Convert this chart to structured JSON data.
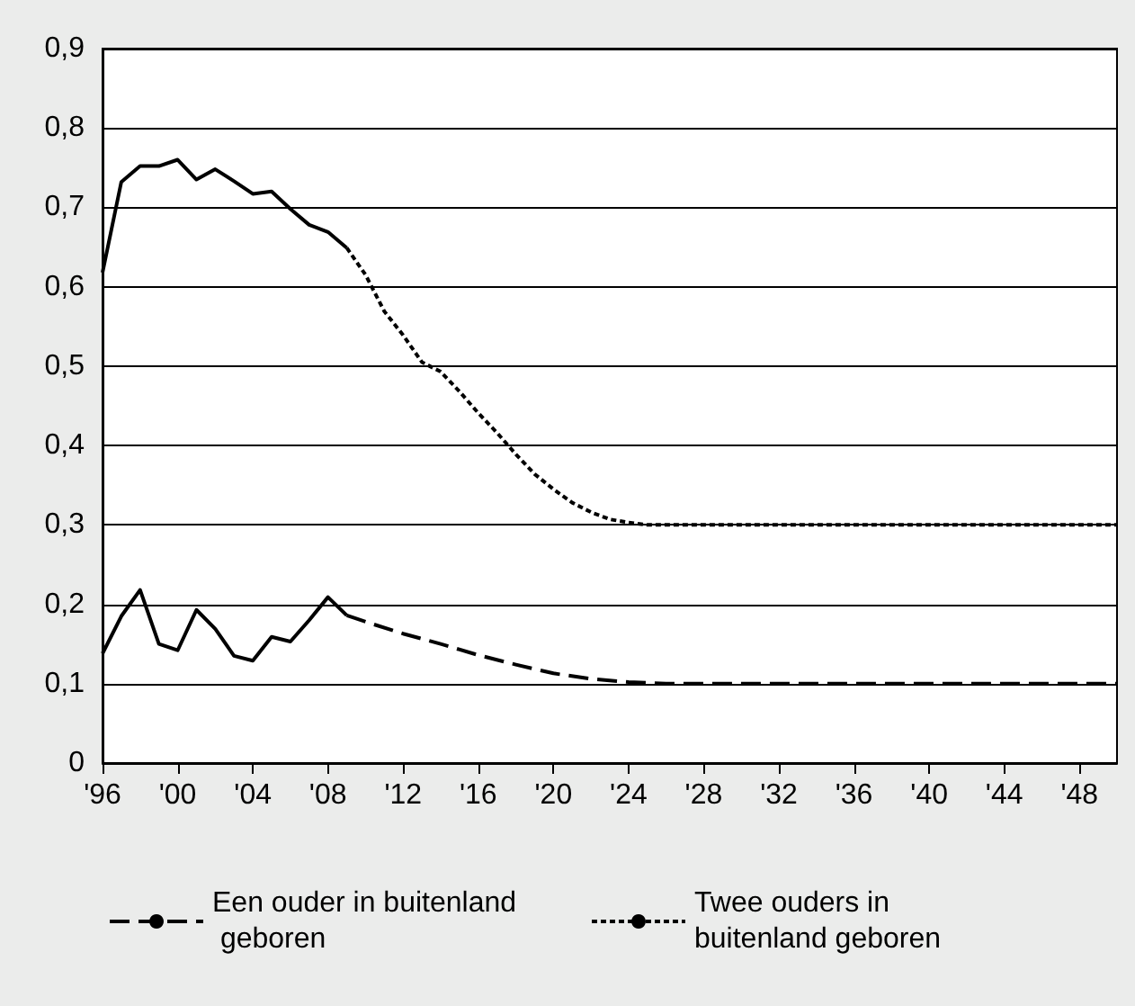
{
  "chart_data": {
    "type": "line",
    "xlim": [
      1996,
      2050
    ],
    "xticks": [
      {
        "value": 1996,
        "label": "'96"
      },
      {
        "value": 2000,
        "label": "'00"
      },
      {
        "value": 2004,
        "label": "'04"
      },
      {
        "value": 2008,
        "label": "'08"
      },
      {
        "value": 2012,
        "label": "'12"
      },
      {
        "value": 2016,
        "label": "'16"
      },
      {
        "value": 2020,
        "label": "'20"
      },
      {
        "value": 2024,
        "label": "'24"
      },
      {
        "value": 2028,
        "label": "'28"
      },
      {
        "value": 2032,
        "label": "'32"
      },
      {
        "value": 2036,
        "label": "'36"
      },
      {
        "value": 2040,
        "label": "'40"
      },
      {
        "value": 2044,
        "label": "'44"
      },
      {
        "value": 2048,
        "label": "'48"
      }
    ],
    "ylim": [
      0,
      0.9
    ],
    "yticks": [
      {
        "value": 0,
        "label": "0"
      },
      {
        "value": 0.1,
        "label": "0,1"
      },
      {
        "value": 0.2,
        "label": "0,2"
      },
      {
        "value": 0.3,
        "label": "0,3"
      },
      {
        "value": 0.4,
        "label": "0,4"
      },
      {
        "value": 0.5,
        "label": "0,5"
      },
      {
        "value": 0.6,
        "label": "0,6"
      },
      {
        "value": 0.7,
        "label": "0,7"
      },
      {
        "value": 0.8,
        "label": "0,8"
      },
      {
        "value": 0.9,
        "label": "0,9"
      }
    ],
    "grid": "y",
    "legend": "bottom",
    "marker": "none",
    "series": [
      {
        "color": "#000000",
        "line_style": "solid",
        "x": [
          1996,
          1997,
          1998,
          1999,
          2000,
          2001,
          2002,
          2003,
          2004,
          2005,
          2006,
          2007,
          2008,
          2009
        ],
        "values": [
          0.138,
          0.185,
          0.218,
          0.15,
          0.142,
          0.193,
          0.169,
          0.135,
          0.129,
          0.159,
          0.153,
          0.18,
          0.209,
          0.186
        ]
      },
      {
        "name": "Een ouder in buitenland geboren",
        "color": "#000000",
        "line_style": "dashed",
        "x": [
          2009,
          2010,
          2012,
          2014,
          2016,
          2018,
          2020,
          2022,
          2024,
          2026,
          2050
        ],
        "values": [
          0.186,
          0.178,
          0.163,
          0.15,
          0.136,
          0.124,
          0.113,
          0.106,
          0.102,
          0.1,
          0.1
        ]
      },
      {
        "color": "#000000",
        "line_style": "solid",
        "x": [
          1996,
          1997,
          1998,
          1999,
          2000,
          2001,
          2002,
          2003,
          2004,
          2005,
          2006,
          2007,
          2008,
          2009
        ],
        "values": [
          0.618,
          0.732,
          0.752,
          0.752,
          0.76,
          0.735,
          0.748,
          0.733,
          0.717,
          0.72,
          0.698,
          0.678,
          0.669,
          0.649
        ]
      },
      {
        "name": "Twee ouders in buitenland geboren",
        "color": "#000000",
        "line_style": "dotted",
        "x": [
          2009,
          2010,
          2011,
          2012,
          2013,
          2014,
          2015,
          2016,
          2017,
          2018,
          2019,
          2020,
          2021,
          2022,
          2023,
          2024,
          2025,
          2050
        ],
        "values": [
          0.649,
          0.615,
          0.569,
          0.539,
          0.505,
          0.493,
          0.468,
          0.441,
          0.416,
          0.389,
          0.364,
          0.345,
          0.328,
          0.316,
          0.307,
          0.303,
          0.3,
          0.3
        ]
      }
    ]
  }
}
